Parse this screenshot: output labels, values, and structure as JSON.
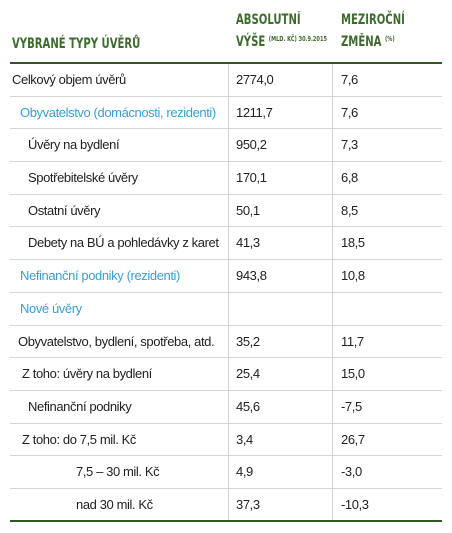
{
  "header": {
    "title": "VYBRANÉ TYPY ÚVĚRŮ",
    "col1": {
      "title": "ABSOLUTNÍ",
      "subtitle": "VÝŠE",
      "note": "(MLD. KČ) 30.9.2015"
    },
    "col2": {
      "title": "MEZIROČNÍ",
      "subtitle": "ZMĚNA",
      "note": "(%)"
    }
  },
  "table": {
    "rows": [
      {
        "label": "Celkový objem úvěrů",
        "value": "2774,0",
        "change": "7,6"
      },
      {
        "label": "Obyvatelstvo (domácnosti, rezidenti)",
        "value": "1211,7",
        "change": "7,6"
      },
      {
        "label": "Úvěry na bydlení",
        "value": "950,2",
        "change": "7,3"
      },
      {
        "label": "Spotřebitelské úvěry",
        "value": "170,1",
        "change": "6,8"
      },
      {
        "label": "Ostatní úvěry",
        "value": "50,1",
        "change": "8,5"
      },
      {
        "label": "Debety na BÚ a pohledávky z karet",
        "value": "41,3",
        "change": "18,5"
      },
      {
        "label": "Nefinanční podniky (rezidenti)",
        "value": "943,8",
        "change": "10,8"
      },
      {
        "label": "Nové úvěry"
      },
      {
        "label": "Obyvatelstvo, bydlení, spotřeba, atd.",
        "value": "35,2",
        "change": "11,7"
      },
      {
        "label": "Z toho: úvěry na bydlení",
        "value": "25,4",
        "change": "15,0"
      },
      {
        "label": "Nefinanční podniky",
        "value": "45,6",
        "change": "-7,5"
      },
      {
        "label": "Z toho: do 7,5 mil. Kč",
        "value": "3,4",
        "change": "26,7"
      },
      {
        "label": "7,5 – 30 mil. Kč",
        "value": "4,9",
        "change": "-3,0"
      },
      {
        "label": "nad 30 mil. Kč",
        "value": "37,3",
        "change": "-10,3"
      }
    ]
  }
}
